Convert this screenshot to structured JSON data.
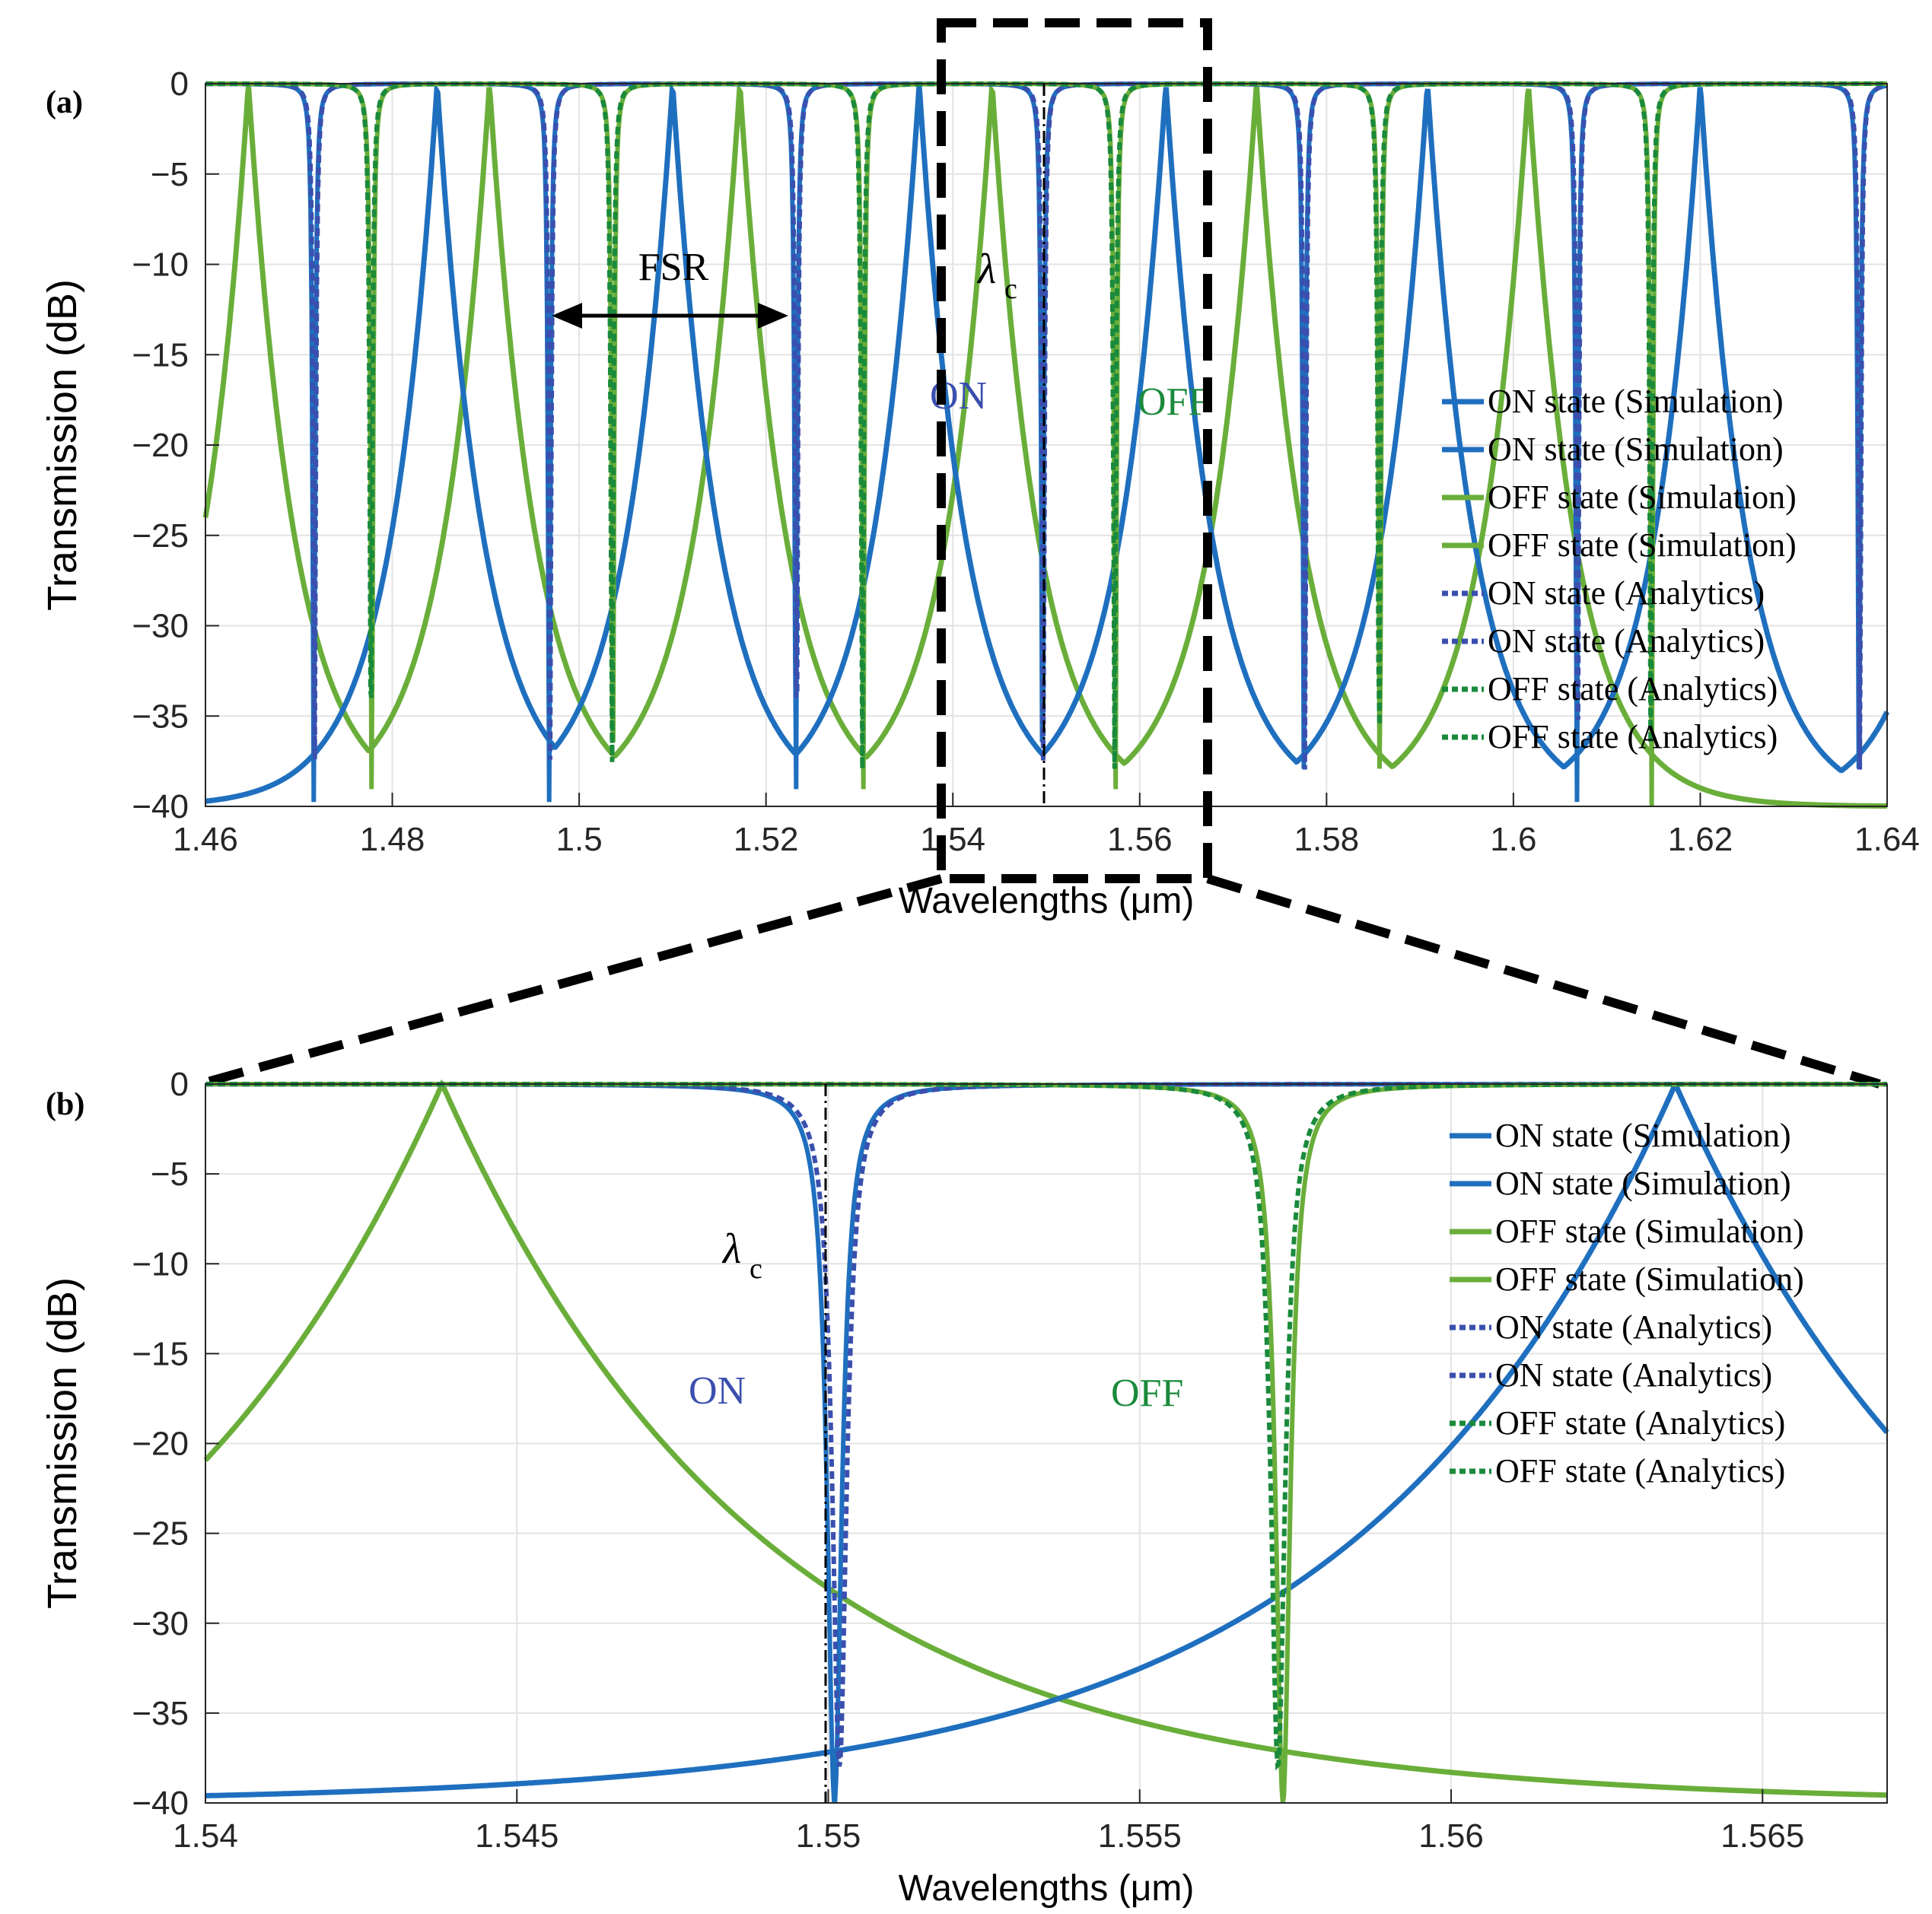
{
  "figure": {
    "colors": {
      "on_sim": "#1f6fbf",
      "on_ana": "#3a4fae",
      "off_sim": "#6aae3a",
      "off_ana": "#1a8a3c",
      "zoom_box": "#000000"
    }
  },
  "chart_data": [
    {
      "id": "a",
      "type": "line",
      "panel_label": "(a)",
      "xlabel": "Wavelengths (μm)",
      "ylabel": "Transmission (dB)",
      "xlim": [
        1.46,
        1.64
      ],
      "ylim": [
        -40,
        0
      ],
      "xticks": [
        1.46,
        1.48,
        1.5,
        1.52,
        1.54,
        1.56,
        1.58,
        1.6,
        1.62,
        1.64
      ],
      "xtick_labels": [
        "1.46",
        "1.48",
        "1.5",
        "1.52",
        "1.54",
        "1.56",
        "1.58",
        "1.6",
        "1.62",
        "1.64"
      ],
      "yticks": [
        0,
        -5,
        -10,
        -15,
        -20,
        -25,
        -30,
        -35,
        -40
      ],
      "ytick_labels": [
        "0",
        "−5",
        "−10",
        "−15",
        "−20",
        "−25",
        "−30",
        "−35",
        "−40"
      ],
      "grid": true,
      "legend_position": "right",
      "legend": [
        "ON state (Simulation)",
        "ON state (Simulation)",
        "OFF state (Simulation)",
        "OFF state (Simulation)",
        "ON state (Analytics)",
        "ON state (Analytics)",
        "OFF state (Analytics)",
        "OFF state (Analytics)"
      ],
      "series": [
        {
          "name": "ON state",
          "resonances_um": [
            1.4716,
            1.4968,
            1.5232,
            1.5496,
            1.5776,
            1.6068,
            1.637
          ],
          "min_db": -40
        },
        {
          "name": "OFF state",
          "resonances_um": [
            1.4778,
            1.5036,
            1.5304,
            1.5574,
            1.5857,
            1.6148
          ],
          "min_db": -40
        }
      ],
      "annotations": {
        "fsr": {
          "label": "FSR",
          "from_um": 1.4968,
          "to_um": 1.5232,
          "at_db": -12.5
        },
        "lambda_c": {
          "label": "λ",
          "sub": "c",
          "at_um": 1.55
        },
        "on_label": "ON",
        "off_label": "OFF"
      },
      "zoom_region": [
        1.54,
        1.567
      ]
    },
    {
      "id": "b",
      "type": "line",
      "panel_label": "(b)",
      "xlabel": "Wavelengths (μm)",
      "ylabel": "Transmission (dB)",
      "xlim": [
        1.54,
        1.567
      ],
      "ylim": [
        -40,
        0
      ],
      "xticks": [
        1.54,
        1.545,
        1.55,
        1.555,
        1.56,
        1.565
      ],
      "xtick_labels": [
        "1.54",
        "1.545",
        "1.55",
        "1.555",
        "1.56",
        "1.565"
      ],
      "yticks": [
        0,
        -5,
        -10,
        -15,
        -20,
        -25,
        -30,
        -35,
        -40
      ],
      "ytick_labels": [
        "0",
        "−5",
        "−10",
        "−15",
        "−20",
        "−25",
        "−30",
        "−35",
        "−40"
      ],
      "grid": true,
      "legend_position": "top-right",
      "legend": [
        "ON state (Simulation)",
        "ON state (Simulation)",
        "OFF state (Simulation)",
        "OFF state (Simulation)",
        "ON state (Analytics)",
        "ON state (Analytics)",
        "OFF state (Analytics)",
        "OFF state (Analytics)"
      ],
      "series": [
        {
          "name": "ON state",
          "resonance_um": 1.5501,
          "min_db": -40
        },
        {
          "name": "OFF state",
          "resonance_um": 1.5573,
          "min_db": -40
        }
      ],
      "annotations": {
        "lambda_c": {
          "label": "λ",
          "sub": "c",
          "at_um": 1.55
        },
        "on_label": "ON",
        "off_label": "OFF"
      }
    }
  ]
}
